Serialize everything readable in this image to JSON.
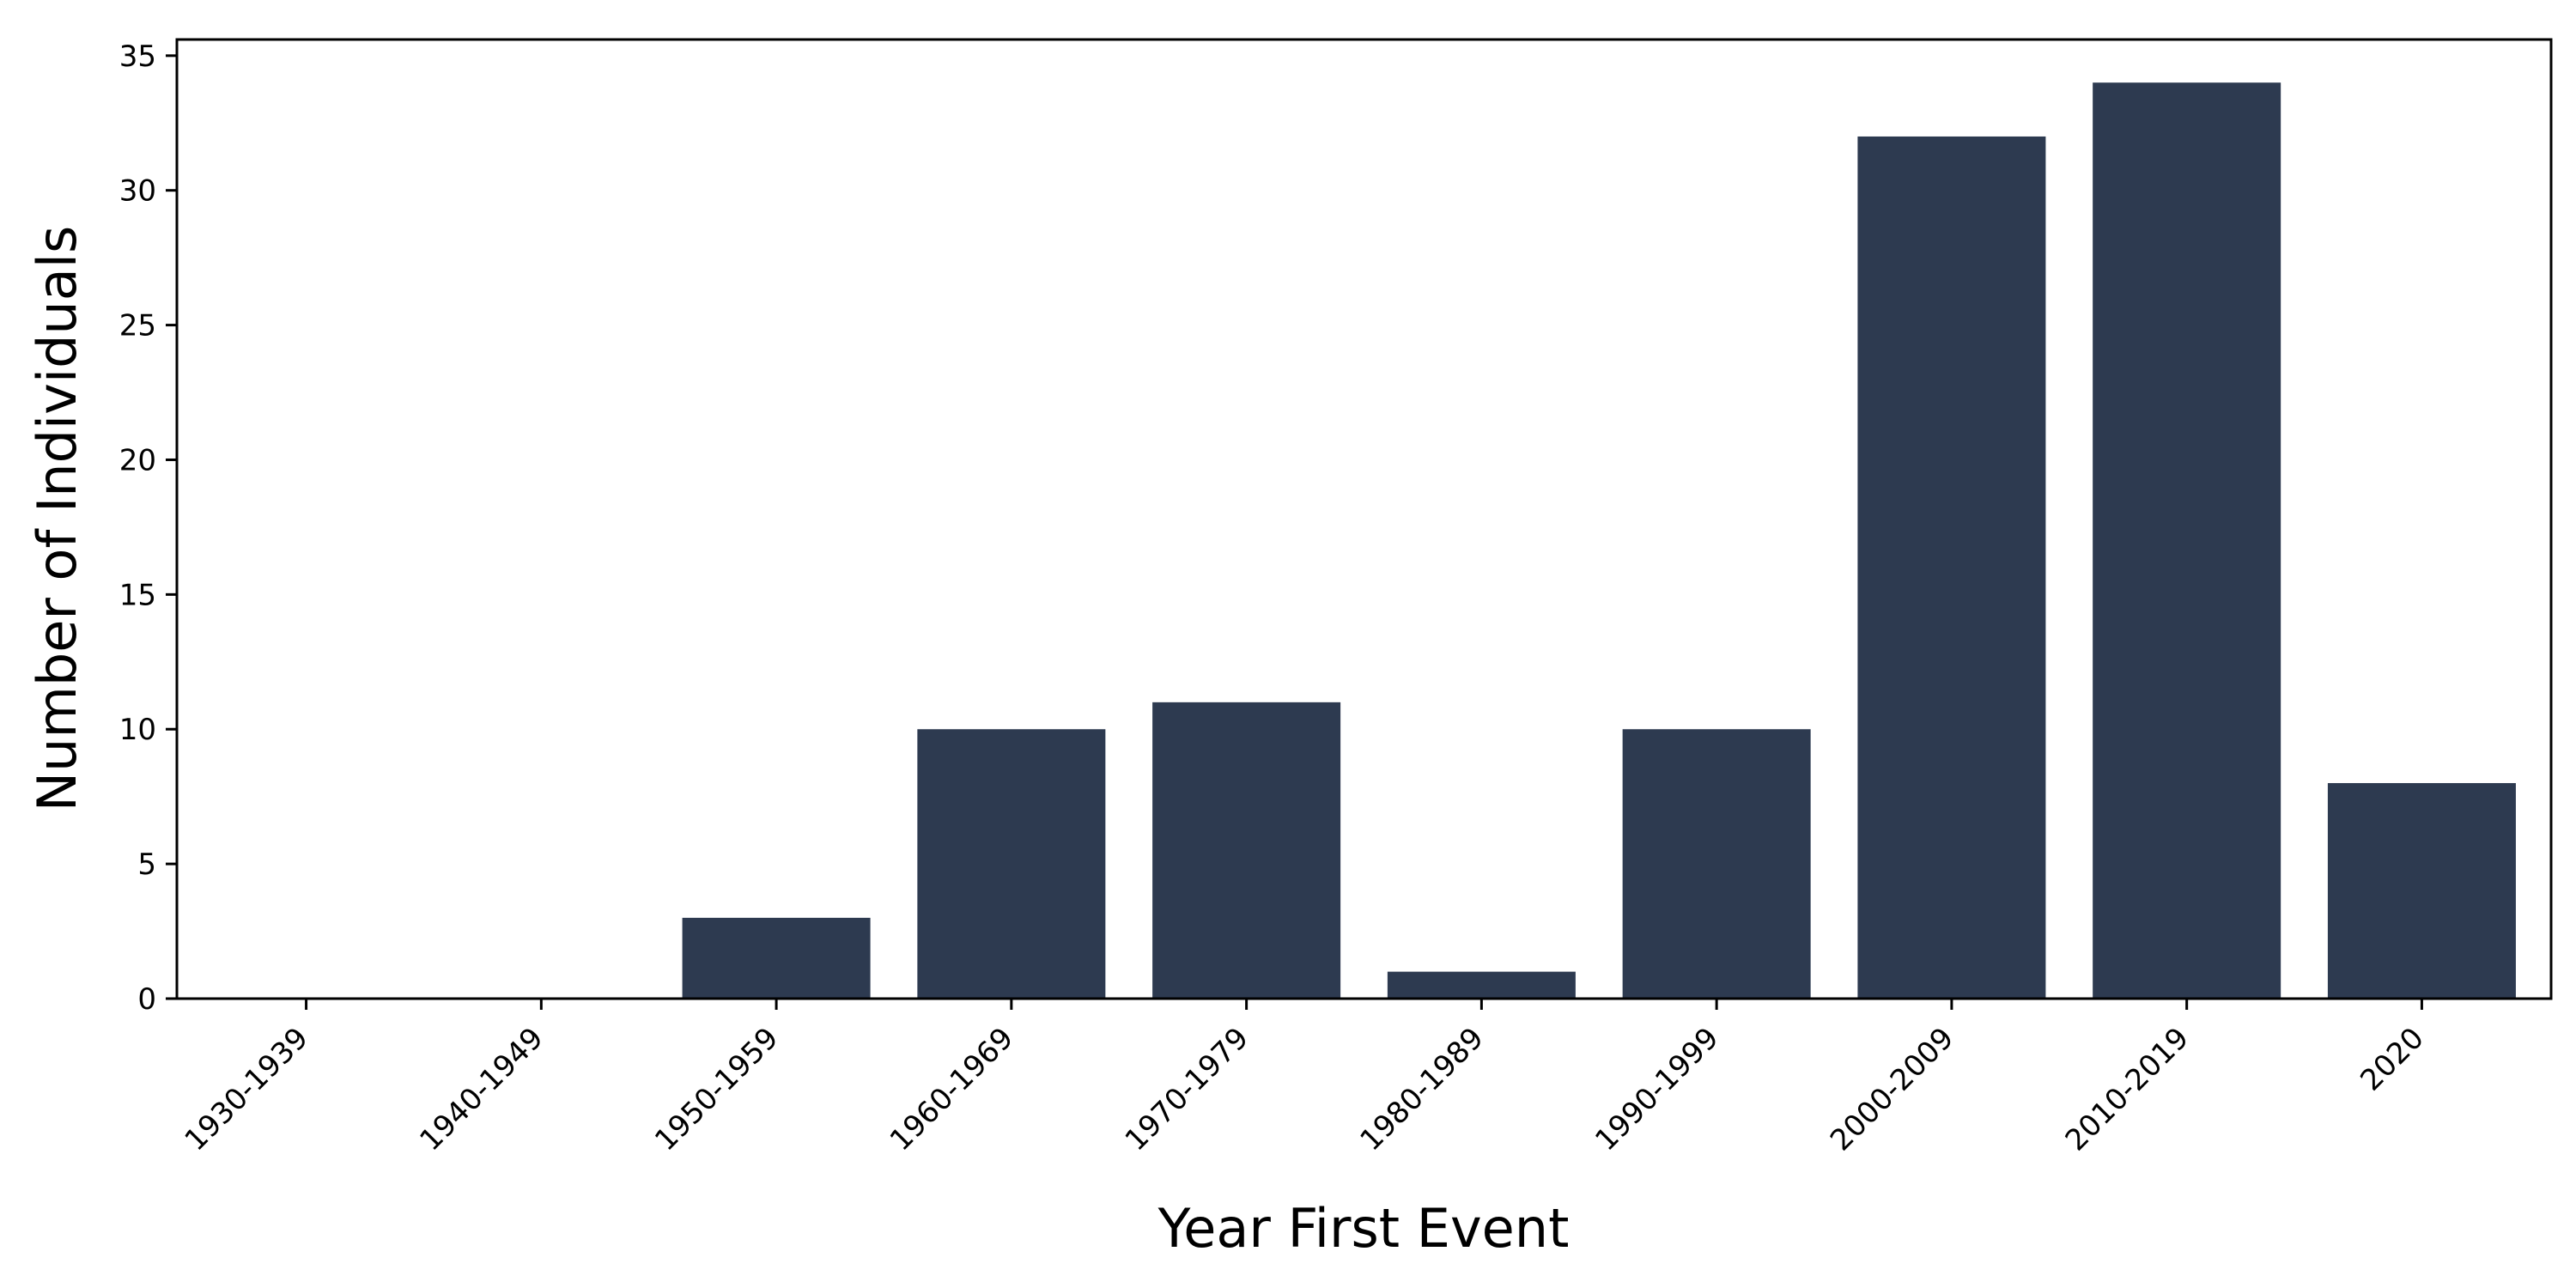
{
  "chart_data": {
    "type": "bar",
    "title": "",
    "xlabel": "Year First Event",
    "ylabel": "Number of Individuals",
    "categories": [
      "1930-1939",
      "1940-1949",
      "1950-1959",
      "1960-1969",
      "1970-1979",
      "1980-1989",
      "1990-1999",
      "2000-2009",
      "2010-2019",
      "2020"
    ],
    "values": [
      0,
      0,
      3,
      10,
      11,
      1,
      10,
      32,
      34,
      8
    ],
    "ylim": [
      0,
      35.6
    ],
    "yticks": [
      0,
      5,
      10,
      15,
      20,
      25,
      30,
      35
    ],
    "grid": false,
    "legend": "none",
    "bar_color": "#2d3a50"
  }
}
